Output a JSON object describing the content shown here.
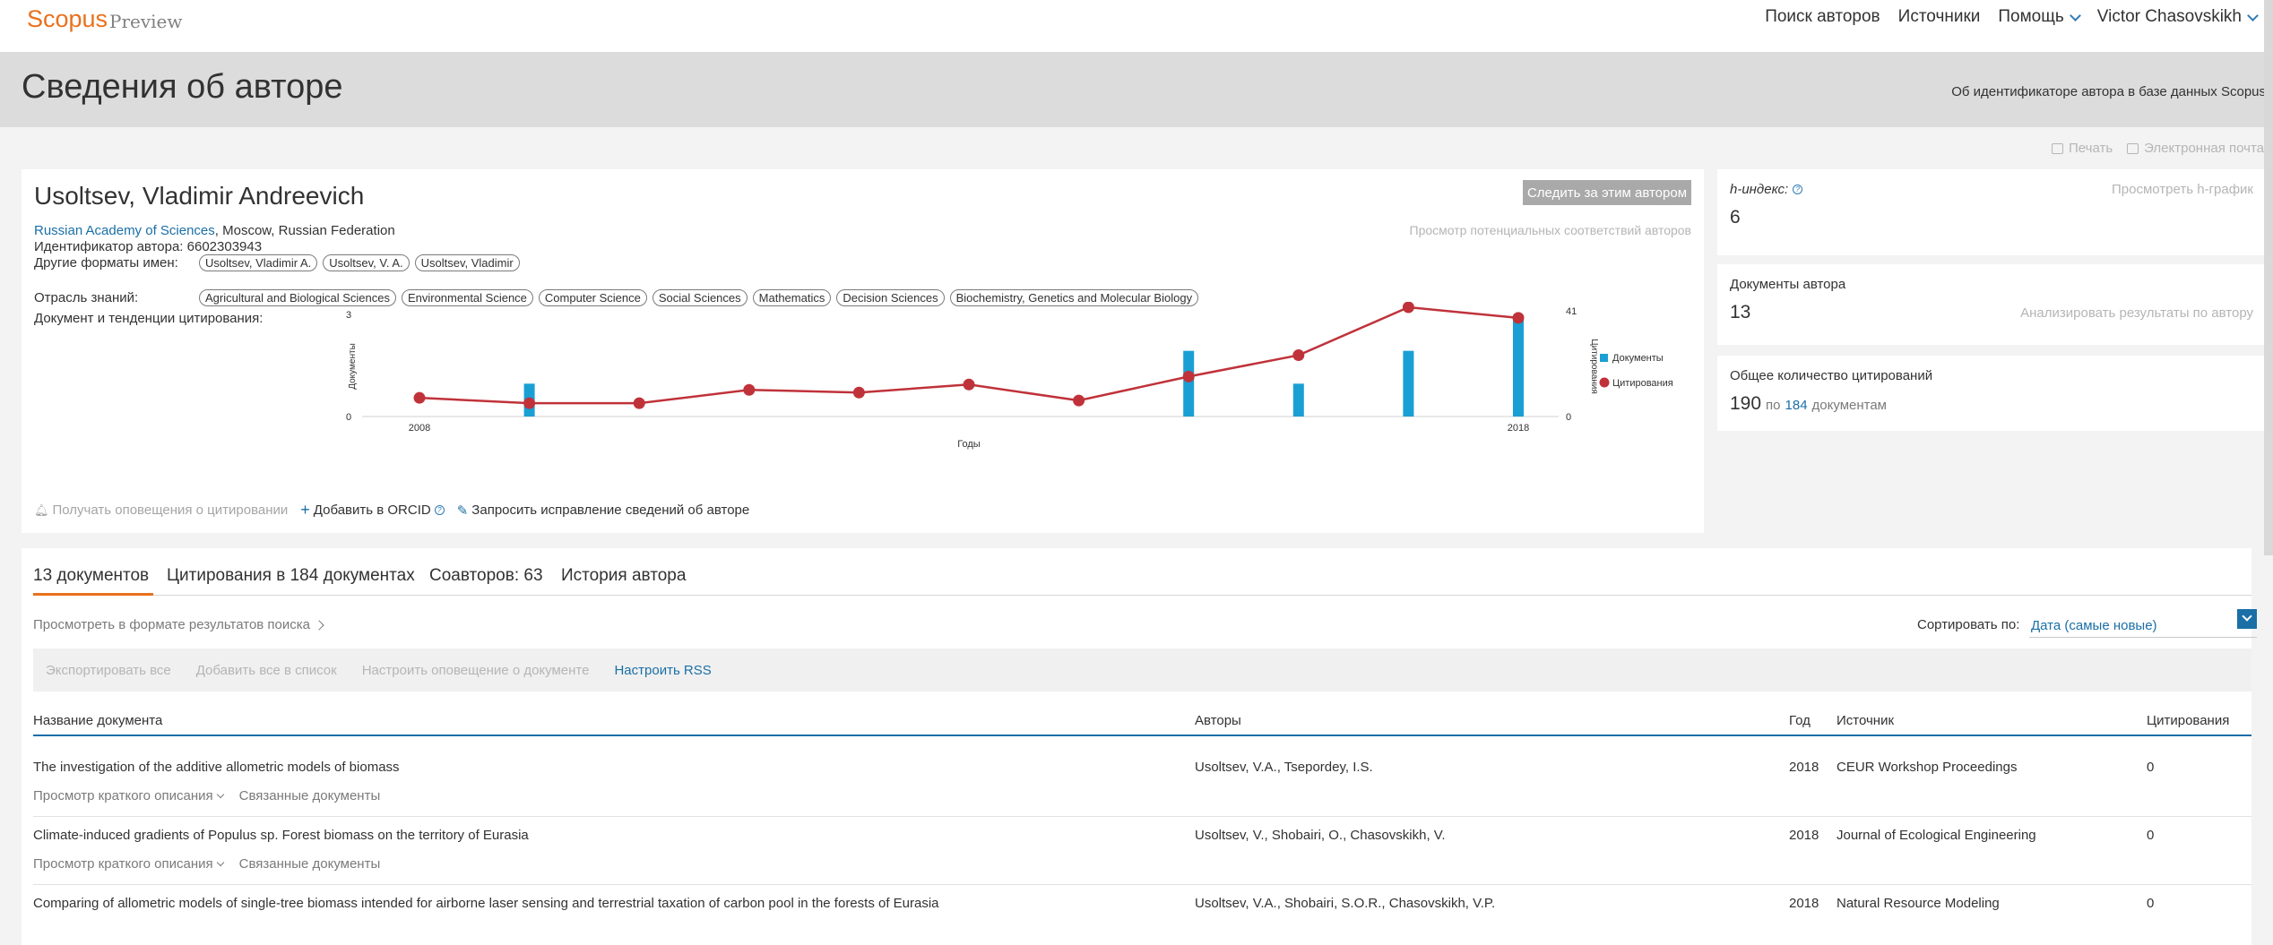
{
  "header": {
    "logo": "Scopus",
    "logo_sub": "Preview",
    "nav": {
      "author_search": "Поиск авторов",
      "sources": "Источники",
      "help": "Помощь",
      "user": "Victor Chasovskikh"
    }
  },
  "band": {
    "title": "Сведения об авторе",
    "about_link": "Об идентификаторе автора в базе данных Scopus"
  },
  "utilities": {
    "print": "Печать",
    "email": "Электронная почта"
  },
  "author": {
    "name": "Usoltsev, Vladimir Andreevich",
    "follow_button": "Следить за этим автором",
    "potential_matches": "Просмотр потенциальных соответствий авторов",
    "affiliation_org": "Russian Academy of Sciences",
    "affiliation_rest": ", Moscow, Russian Federation",
    "id_label": "Идентификатор автора:",
    "id_value": "6602303943",
    "name_formats_label": "Другие форматы имен:",
    "name_formats": [
      "Usoltsev, Vladimir A.",
      "Usoltsev, V. A.",
      "Usoltsev, Vladimir"
    ],
    "subjects_label": "Отрасль знаний:",
    "subjects": [
      "Agricultural and Biological Sciences",
      "Environmental Science",
      "Computer Science",
      "Social Sciences",
      "Mathematics",
      "Decision Sciences",
      "Biochemistry, Genetics and Molecular Biology"
    ],
    "trend_label": "Документ и тенденции цитирования:",
    "actions": {
      "citation_alerts": "Получать оповещения о цитировании",
      "add_orcid": "Добавить в ORCID",
      "request_correction": "Запросить исправление сведений об авторе"
    }
  },
  "chart_data": {
    "type": "bar",
    "x": [
      2008,
      2009,
      2010,
      2011,
      2012,
      2013,
      2014,
      2015,
      2016,
      2017,
      2018
    ],
    "x_tick_labels": [
      "2008",
      "2018"
    ],
    "xlabel": "Годы",
    "ylabel_left": "Документы",
    "ylabel_right": "Цитирования",
    "ylim_left": [
      0,
      3
    ],
    "ylim_right": [
      0,
      41
    ],
    "y_tick_labels_left": [
      "3",
      "0"
    ],
    "y_tick_labels_right": [
      "41",
      "0"
    ],
    "legend_position": "right",
    "series": [
      {
        "name": "Документы",
        "kind": "bar",
        "color": "#1a9fd4",
        "values": [
          0,
          1,
          0,
          0,
          0,
          0,
          0,
          2,
          1,
          2,
          3
        ]
      },
      {
        "name": "Цитирования",
        "kind": "line",
        "color": "#c0323a",
        "values": [
          7,
          5,
          5,
          10,
          9,
          12,
          6,
          15,
          23,
          41,
          37
        ]
      }
    ]
  },
  "metrics": {
    "h_index_label": "h-индекс:",
    "h_index": "6",
    "h_graph_link": "Просмотреть h-график",
    "docs_label": "Документы автора",
    "docs_count": "13",
    "analyze_link": "Анализировать результаты по автору",
    "citations_label": "Общее количество цитирований",
    "citations_total": "190",
    "citations_by": "по",
    "citing_docs": "184",
    "citations_docs_word": "документам"
  },
  "tabs": [
    "13 документов",
    "Цитирования в 184 документах",
    "Соавторов: 63",
    "История автора"
  ],
  "doclist": {
    "view_as": "Просмотреть в формате результатов поиска",
    "sort_label": "Сортировать по:",
    "sort_value": "Дата (самые новые)",
    "actions": {
      "export_all": "Экспортировать все",
      "add_all": "Добавить все в список",
      "doc_alert": "Настроить оповещение о документе",
      "rss": "Настроить RSS"
    },
    "columns": {
      "title": "Название документа",
      "authors": "Авторы",
      "year": "Год",
      "source": "Источник",
      "citations": "Цитирования"
    },
    "sub_abstract": "Просмотр краткого описания",
    "sub_related": "Связанные документы",
    "rows": [
      {
        "title": "The investigation of the additive allometric models of biomass",
        "authors": "Usoltsev, V.A., Tsepordey, I.S.",
        "year": "2018",
        "source": "CEUR Workshop Proceedings",
        "citations": "0"
      },
      {
        "title": "Climate-induced gradients of Populus sp. Forest biomass on the territory of Eurasia",
        "authors": "Usoltsev, V., Shobairi, O., Chasovskikh, V.",
        "year": "2018",
        "source": "Journal of Ecological Engineering",
        "citations": "0"
      },
      {
        "title": "Comparing of allometric models of single-tree biomass intended for airborne laser sensing and terrestrial taxation of carbon pool in the forests of Eurasia",
        "authors": "Usoltsev, V.A., Shobairi, S.O.R., Chasovskikh, V.P.",
        "year": "2018",
        "source": "Natural Resource Modeling",
        "citations": "0"
      }
    ]
  }
}
